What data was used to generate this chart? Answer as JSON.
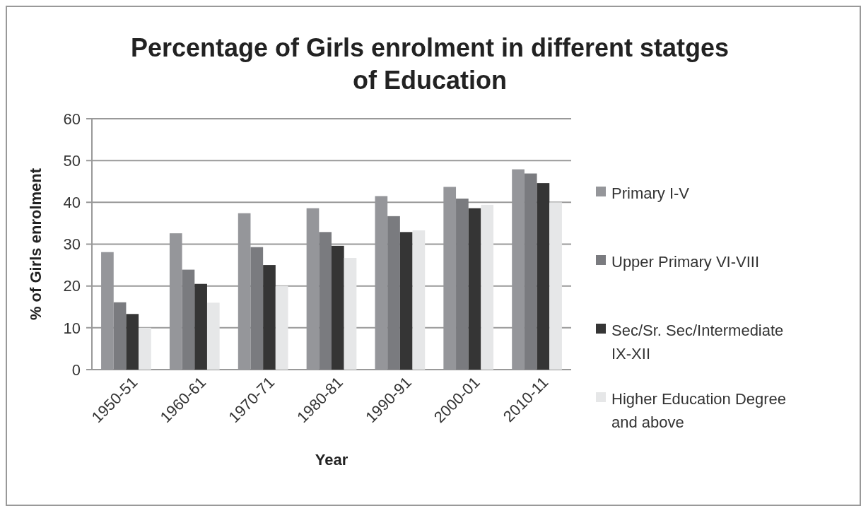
{
  "chart_data": {
    "type": "bar",
    "title": "Percentage of Girls  enrolment in different statges of Education",
    "xlabel": "Year",
    "ylabel": "% of Girls enrolment",
    "categories": [
      "1950-51",
      "1960-61",
      "1970-71",
      "1980-81",
      "1990-91",
      "2000-01",
      "2010-11"
    ],
    "series": [
      {
        "name": "Primary I-V",
        "color": "#95969a",
        "values": [
          28.1,
          32.6,
          37.4,
          38.6,
          41.5,
          43.7,
          47.9
        ]
      },
      {
        "name": "Upper Primary VI-VIII",
        "color": "#7a7b7f",
        "values": [
          16.1,
          23.9,
          29.3,
          32.9,
          36.7,
          40.9,
          46.9
        ]
      },
      {
        "name": "Sec/Sr. Sec/Intermediate IX-XII",
        "color": "#353535",
        "values": [
          13.3,
          20.5,
          25.0,
          29.6,
          32.9,
          38.6,
          44.6
        ]
      },
      {
        "name": "Higher Education Degree and above",
        "color": "#e6e7e8",
        "values": [
          10.0,
          16.0,
          20.0,
          26.7,
          33.3,
          39.4,
          40.0
        ]
      }
    ],
    "ylim": [
      0,
      60
    ],
    "yticks": [
      0,
      10,
      20,
      30,
      40,
      50,
      60
    ],
    "grid": "y",
    "legend": "right"
  }
}
